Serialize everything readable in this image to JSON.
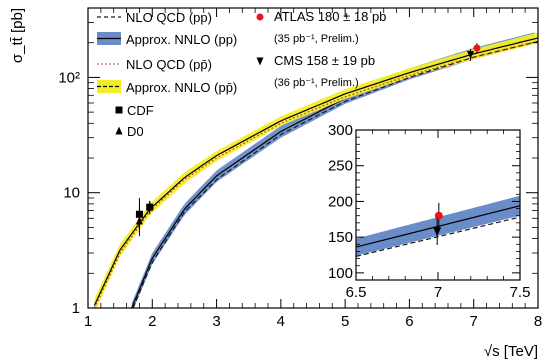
{
  "chart_data": [
    {
      "type": "line",
      "title": "",
      "xlabel": "√s [TeV]",
      "ylabel": "σ_tt̄ [pb]",
      "xlim": [
        1,
        8
      ],
      "ylim": [
        1,
        400
      ],
      "yscale": "log",
      "x_ticks": [
        "1",
        "2",
        "3",
        "4",
        "5",
        "6",
        "7",
        "8"
      ],
      "y_ticks": [
        "1",
        "10",
        "10²"
      ],
      "grid": false,
      "series": [
        {
          "name": "NLO QCD (pp)",
          "style": "dashed",
          "color": "#1a1a1a",
          "x": [
            1.7,
            2,
            2.5,
            3,
            4,
            5,
            6,
            7,
            8
          ],
          "y": [
            1.0,
            2.5,
            6.8,
            13,
            32,
            62,
            100,
            150,
            205
          ]
        },
        {
          "name": "Approx. NNLO (pp)",
          "style": "band",
          "color": "#6a8cc8",
          "x": [
            1.68,
            2,
            2.5,
            3,
            4,
            5,
            6,
            7,
            8
          ],
          "y": [
            1.0,
            2.7,
            7.2,
            14,
            34,
            66,
            108,
            162,
            225
          ],
          "y_low": [
            0.9,
            2.4,
            6.4,
            12.4,
            30,
            59,
            96,
            144,
            200
          ],
          "y_high": [
            1.1,
            3.0,
            8.0,
            15.6,
            38,
            73,
            120,
            180,
            250
          ]
        },
        {
          "name": "NLO QCD (pp̄)",
          "style": "dotted",
          "color": "#cc2222",
          "x": [
            1.1,
            1.5,
            1.96,
            2.5,
            3,
            4,
            5,
            6,
            7,
            8
          ],
          "y": [
            1.0,
            3.0,
            6.9,
            13,
            20,
            40,
            68,
            104,
            150,
            205
          ]
        },
        {
          "name": "Approx. NNLO (pp̄)",
          "style": "band",
          "color": "#f2ee2a",
          "x": [
            1.1,
            1.5,
            1.96,
            2.5,
            3,
            4,
            5,
            6,
            7,
            8
          ],
          "y": [
            1.05,
            3.2,
            7.2,
            13.5,
            21,
            42,
            72,
            110,
            160,
            220
          ],
          "y_low": [
            0.9,
            2.8,
            6.4,
            12,
            18.8,
            38,
            65,
            100,
            144,
            198
          ],
          "y_high": [
            1.2,
            3.6,
            8.0,
            15,
            23,
            46,
            79,
            120,
            176,
            245
          ]
        }
      ],
      "points": [
        {
          "name": "CDF",
          "marker": "square",
          "color": "#000000",
          "x": [
            1.8,
            1.96
          ],
          "y": [
            6.5,
            7.5
          ],
          "y_err_low": [
            2.0,
            1.0
          ],
          "y_err_high": [
            2.5,
            1.0
          ]
        },
        {
          "name": "D0",
          "marker": "triangle-up",
          "color": "#000000",
          "x": [
            1.8,
            1.96
          ],
          "y": [
            5.7,
            7.6
          ],
          "y_err_low": [
            1.5,
            0.8
          ],
          "y_err_high": [
            1.9,
            0.8
          ]
        },
        {
          "name": "ATLAS 180 ± 18 pb",
          "note": "(35 pb⁻¹, Prelim.)",
          "marker": "circle",
          "color": "#e8141e",
          "x": [
            7.05
          ],
          "y": [
            180
          ],
          "y_err_low": [
            18
          ],
          "y_err_high": [
            18
          ]
        },
        {
          "name": "CMS 158 ± 19 pb",
          "note": "(36 pb⁻¹, Prelim.)",
          "marker": "triangle-down",
          "color": "#000000",
          "x": [
            6.95
          ],
          "y": [
            158
          ],
          "y_err_low": [
            19
          ],
          "y_err_high": [
            19
          ]
        }
      ],
      "legend": {
        "placement": "top-left",
        "entries": [
          {
            "label": "NLO QCD (pp)",
            "symbol": "dashed",
            "color": "#1a1a1a"
          },
          {
            "label": "Approx. NNLO (pp)",
            "symbol": "band",
            "color": "#6a8cc8"
          },
          {
            "label": "NLO QCD (pp̄)",
            "symbol": "dotted",
            "color": "#cc2222"
          },
          {
            "label": "Approx. NNLO (pp̄)",
            "symbol": "band",
            "color": "#f2ee2a"
          },
          {
            "label": "CDF",
            "symbol": "square",
            "color": "#000000"
          },
          {
            "label": "D0",
            "symbol": "triangle-up",
            "color": "#000000"
          },
          {
            "label": "ATLAS 180 ± 18 pb",
            "symbol": "circle",
            "color": "#e8141e"
          },
          {
            "label": "(35 pb⁻¹, Prelim.)",
            "symbol": "none",
            "color": "#000000"
          },
          {
            "label": "CMS 158 ± 19 pb",
            "symbol": "triangle-down",
            "color": "#000000"
          },
          {
            "label": "(36 pb⁻¹, Prelim.)",
            "symbol": "none",
            "color": "#000000"
          }
        ]
      }
    },
    {
      "type": "line",
      "title": "",
      "xlabel": "",
      "ylabel": "",
      "xlim": [
        6.5,
        7.5
      ],
      "ylim": [
        90,
        300
      ],
      "yscale": "linear",
      "x_ticks": [
        "6.5",
        "7",
        "7.5"
      ],
      "y_ticks": [
        "100",
        "150",
        "200",
        "250",
        "300"
      ],
      "grid": false,
      "series": [
        {
          "name": "NLO QCD (pp)",
          "style": "dashed",
          "color": "#1a1a1a",
          "x": [
            6.5,
            7.5
          ],
          "y": [
            123,
            178
          ]
        },
        {
          "name": "Approx. NNLO (pp)",
          "style": "band",
          "color": "#6a8cc8",
          "x": [
            6.5,
            7.5
          ],
          "y": [
            136,
            194
          ],
          "y_low": [
            124,
            180
          ],
          "y_high": [
            148,
            208
          ]
        }
      ],
      "points": [
        {
          "name": "ATLAS",
          "marker": "circle",
          "color": "#e8141e",
          "x": [
            7.005
          ],
          "y": [
            180
          ],
          "y_err_low": [
            18
          ],
          "y_err_high": [
            18
          ]
        },
        {
          "name": "CMS",
          "marker": "triangle-down",
          "color": "#000000",
          "x": [
            6.995
          ],
          "y": [
            158
          ],
          "y_err_low": [
            19
          ],
          "y_err_high": [
            19
          ]
        }
      ]
    }
  ]
}
